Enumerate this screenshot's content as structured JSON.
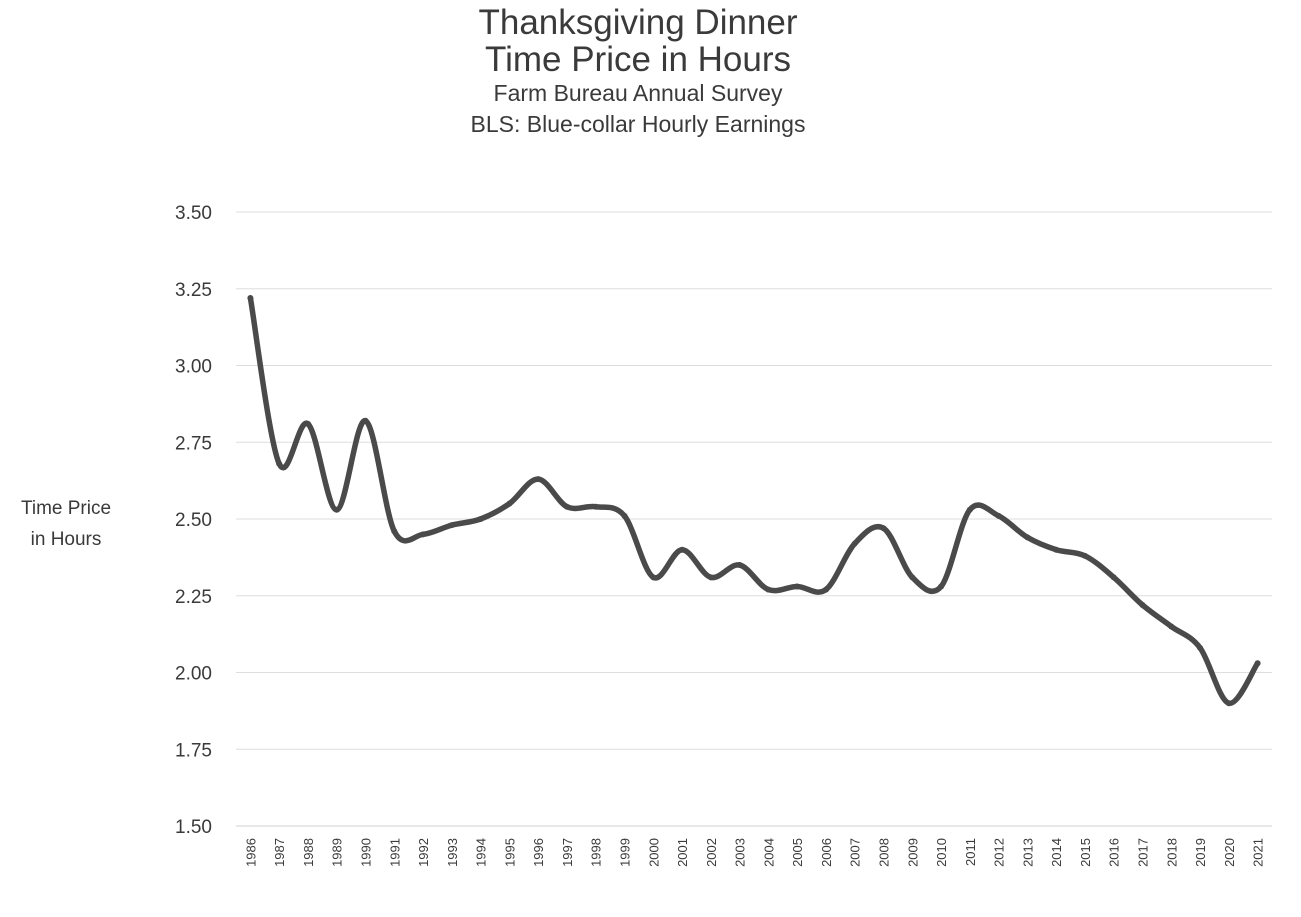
{
  "chart_data": {
    "type": "line",
    "title_lines": [
      "Thanksgiving Dinner",
      "Time Price in Hours"
    ],
    "subtitle_lines": [
      "Farm Bureau Annual Survey",
      "BLS: Blue-collar Hourly Earnings"
    ],
    "ylabel_lines": [
      "Time Price",
      "in Hours"
    ],
    "xlabel": "",
    "ylim": [
      1.5,
      3.5
    ],
    "yticks": [
      "1.50",
      "1.75",
      "2.00",
      "2.25",
      "2.50",
      "2.75",
      "3.00",
      "3.25",
      "3.50"
    ],
    "grid": true,
    "legend": "none",
    "line_color": "#4a4a4a",
    "categories": [
      "1986",
      "1987",
      "1988",
      "1989",
      "1990",
      "1991",
      "1992",
      "1993",
      "1994",
      "1995",
      "1996",
      "1997",
      "1998",
      "1999",
      "2000",
      "2001",
      "2002",
      "2003",
      "2004",
      "2005",
      "2006",
      "2007",
      "2008",
      "2009",
      "2010",
      "2011",
      "2012",
      "2013",
      "2014",
      "2015",
      "2016",
      "2017",
      "2018",
      "2019",
      "2020",
      "2021"
    ],
    "series": [
      {
        "values": [
          3.22,
          2.68,
          2.81,
          2.53,
          2.82,
          2.46,
          2.45,
          2.48,
          2.5,
          2.55,
          2.63,
          2.54,
          2.54,
          2.51,
          2.31,
          2.4,
          2.31,
          2.35,
          2.27,
          2.28,
          2.27,
          2.42,
          2.47,
          2.31,
          2.28,
          2.53,
          2.51,
          2.44,
          2.4,
          2.38,
          2.31,
          2.22,
          2.15,
          2.08,
          1.9,
          2.03
        ]
      }
    ]
  }
}
